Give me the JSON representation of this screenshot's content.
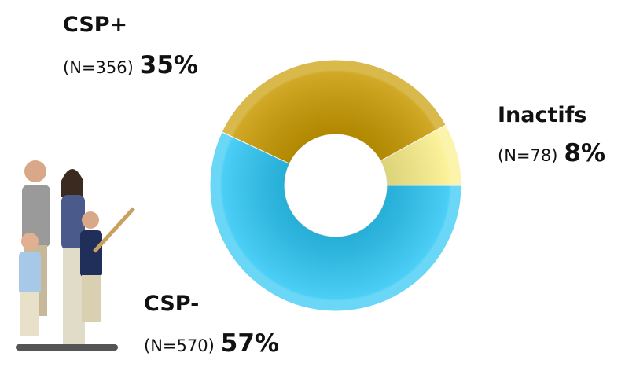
{
  "chart_data": {
    "type": "donut",
    "categories": [
      "CSP+",
      "Inactifs",
      "CSP-"
    ],
    "values": [
      35,
      8,
      57
    ],
    "value_labels": [
      "35%",
      "8%",
      "57%"
    ],
    "n_labels": [
      "(N=356)",
      "(N=78)",
      "(N=570)"
    ],
    "colors": [
      "#c99a00",
      "#fbf08a",
      "#2cc6f4"
    ]
  }
}
